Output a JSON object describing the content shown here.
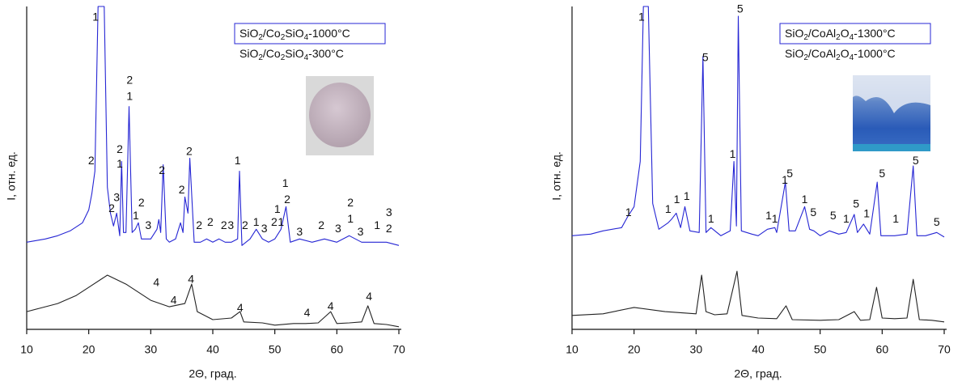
{
  "chart_data": [
    {
      "type": "line",
      "xlabel": "2Θ, град.",
      "ylabel": "I, отн. ед.",
      "xlim": [
        10,
        70
      ],
      "ylim": [
        0,
        100
      ],
      "xticks": [
        10,
        20,
        30,
        40,
        50,
        60,
        70
      ],
      "legend": "upper right",
      "series": [
        {
          "name": "SiO2/Co2SiO4-1000°C",
          "color": "#2626d4",
          "x": [
            10,
            13,
            15,
            17,
            19,
            20,
            20.5,
            21,
            21.5,
            22.5,
            23,
            23.5,
            24,
            24.5,
            25,
            25.3,
            25.6,
            26,
            26.5,
            27,
            27.5,
            28,
            28.5,
            29,
            30,
            31,
            31.3,
            31.6,
            32,
            32.5,
            33,
            34,
            34.8,
            35.2,
            35.5,
            36,
            36.3,
            37,
            38,
            39,
            40,
            41,
            42,
            43,
            44,
            44.3,
            44.7,
            46,
            47,
            48,
            49,
            50,
            51,
            51.8,
            52.5,
            54,
            56,
            58,
            60,
            62,
            64,
            66,
            68,
            70
          ],
          "values": [
            27,
            28,
            29,
            30.5,
            33,
            37,
            42,
            49,
            100,
            100,
            44,
            36,
            32,
            36,
            29,
            52,
            30,
            30,
            69,
            30,
            31,
            33,
            28,
            28,
            28,
            31,
            34,
            30,
            51,
            28,
            27,
            28,
            33,
            30,
            41,
            36,
            53,
            27,
            27,
            28,
            27,
            28,
            27,
            27,
            28,
            49,
            26,
            28,
            31,
            28,
            27,
            28,
            31,
            38,
            27,
            28,
            27,
            28,
            27,
            29,
            27,
            27,
            27,
            26
          ]
        },
        {
          "name": "SiO2/Co2SiO4-300°C",
          "color": "#222222",
          "x": [
            10,
            12,
            15,
            18,
            20,
            23,
            26,
            28,
            30,
            33,
            35.5,
            36.6,
            37.5,
            40,
            43,
            44.4,
            45,
            48,
            50,
            53,
            55,
            57,
            59,
            60,
            62,
            64,
            65,
            66,
            68,
            70
          ],
          "values": [
            5.5,
            6.5,
            8,
            10.5,
            13,
            16.8,
            14,
            11.5,
            9,
            7,
            8,
            14,
            5.5,
            3,
            3.5,
            5.5,
            2.3,
            2,
            1.3,
            1.8,
            1.8,
            2,
            5.5,
            1.8,
            2,
            2.3,
            7.3,
            1.8,
            1.5,
            0.8
          ]
        }
      ],
      "annotations": [
        {
          "text": "1",
          "x": 21.1,
          "y": 96.5
        },
        {
          "text": "2",
          "x": 20.4,
          "y": 52
        },
        {
          "text": "3",
          "x": 24.5,
          "y": 40.6
        },
        {
          "text": "2",
          "x": 23.7,
          "y": 37.3
        },
        {
          "text": "2",
          "x": 25,
          "y": 55.6
        },
        {
          "text": "1",
          "x": 25,
          "y": 51
        },
        {
          "text": "2",
          "x": 26.6,
          "y": 77
        },
        {
          "text": "1",
          "x": 26.6,
          "y": 72
        },
        {
          "text": "2",
          "x": 28.5,
          "y": 39
        },
        {
          "text": "1",
          "x": 27.6,
          "y": 35
        },
        {
          "text": "3",
          "x": 29.6,
          "y": 32
        },
        {
          "text": "2",
          "x": 31.8,
          "y": 49
        },
        {
          "text": "2",
          "x": 35,
          "y": 43
        },
        {
          "text": "2",
          "x": 36.2,
          "y": 55
        },
        {
          "text": "2",
          "x": 37.8,
          "y": 32
        },
        {
          "text": "2",
          "x": 39.6,
          "y": 33
        },
        {
          "text": "2",
          "x": 41.8,
          "y": 32
        },
        {
          "text": "3",
          "x": 42.9,
          "y": 32
        },
        {
          "text": "1",
          "x": 44,
          "y": 52
        },
        {
          "text": "2",
          "x": 45.2,
          "y": 32
        },
        {
          "text": "1",
          "x": 47,
          "y": 33
        },
        {
          "text": "3",
          "x": 48.3,
          "y": 31
        },
        {
          "text": "2",
          "x": 49.9,
          "y": 33
        },
        {
          "text": "1",
          "x": 50.4,
          "y": 37
        },
        {
          "text": "1",
          "x": 51,
          "y": 33
        },
        {
          "text": "1",
          "x": 51.7,
          "y": 45
        },
        {
          "text": "2",
          "x": 52,
          "y": 40
        },
        {
          "text": "3",
          "x": 54,
          "y": 30
        },
        {
          "text": "2",
          "x": 57.5,
          "y": 32
        },
        {
          "text": "3",
          "x": 60.2,
          "y": 31
        },
        {
          "text": "2",
          "x": 62.2,
          "y": 39
        },
        {
          "text": "1",
          "x": 62.2,
          "y": 34
        },
        {
          "text": "3",
          "x": 63.8,
          "y": 30
        },
        {
          "text": "1",
          "x": 66.5,
          "y": 32
        },
        {
          "text": "3",
          "x": 68.4,
          "y": 36
        },
        {
          "text": "2",
          "x": 68.4,
          "y": 31
        },
        {
          "text": "4",
          "x": 30.9,
          "y": 14.3
        },
        {
          "text": "4",
          "x": 33.7,
          "y": 8.8
        },
        {
          "text": "4",
          "x": 36.5,
          "y": 15.3
        },
        {
          "text": "4",
          "x": 44.4,
          "y": 6.5
        },
        {
          "text": "4",
          "x": 55.2,
          "y": 5
        },
        {
          "text": "4",
          "x": 59,
          "y": 7
        },
        {
          "text": "4",
          "x": 65.2,
          "y": 10
        }
      ]
    },
    {
      "type": "line",
      "xlabel": "2Θ, град.",
      "ylabel": "I, отн. ед.",
      "xlim": [
        10,
        70
      ],
      "ylim": [
        0,
        100
      ],
      "xticks": [
        10,
        20,
        30,
        40,
        50,
        60,
        70
      ],
      "legend": "upper right",
      "series": [
        {
          "name": "SiO2/CoAl2O4-1300°C",
          "color": "#2626d4",
          "x": [
            10,
            13,
            15,
            18,
            19,
            20,
            21,
            21.5,
            22.3,
            23,
            24,
            25.5,
            26,
            26.8,
            27.5,
            28.2,
            29,
            30.5,
            31.1,
            31.6,
            32.4,
            34,
            35.5,
            36.1,
            36.5,
            36.8,
            37.3,
            39,
            40,
            41.5,
            42.7,
            43,
            44.4,
            45,
            46,
            47.5,
            48.3,
            49,
            50,
            51.5,
            53,
            54.2,
            55.5,
            56,
            57,
            58,
            59.2,
            59.8,
            62,
            64,
            65,
            65.6,
            67,
            68.8,
            70
          ],
          "values": [
            29,
            29.5,
            30.5,
            31.5,
            35,
            38,
            52,
            100,
            100,
            39,
            31,
            33,
            34,
            36,
            31.5,
            38,
            30.5,
            30,
            84.5,
            30,
            31.5,
            29,
            30.5,
            52,
            32,
            97,
            30.5,
            29.5,
            29,
            31,
            31.5,
            30,
            45.6,
            30.5,
            30.5,
            38,
            31,
            30.5,
            29,
            30.5,
            29.5,
            30,
            35.6,
            30,
            32.6,
            29.5,
            45.6,
            29,
            29,
            29.5,
            50.6,
            29,
            29,
            30,
            28.6
          ]
        },
        {
          "name": "SiO2/CoAl2O4-1000°C",
          "color": "#222222",
          "x": [
            10,
            15,
            20,
            25,
            30,
            30.9,
            31.6,
            33,
            35,
            36.6,
            37.4,
            40,
            43,
            44.5,
            45.5,
            50,
            53,
            55.5,
            56.5,
            58,
            59.1,
            60,
            62,
            64,
            65,
            66,
            68,
            70
          ],
          "values": [
            4.3,
            4.8,
            6.8,
            5.5,
            4.8,
            16.8,
            5.5,
            4.5,
            4.8,
            18,
            4.3,
            3.5,
            3.3,
            7.3,
            3,
            2.8,
            3,
            5.5,
            2.8,
            3,
            13,
            3.5,
            3.3,
            3.5,
            15.5,
            3,
            2.8,
            2.3
          ]
        }
      ],
      "annotations": [
        {
          "text": "1",
          "x": 21.2,
          "y": 96.5
        },
        {
          "text": "1",
          "x": 19.1,
          "y": 36
        },
        {
          "text": "1",
          "x": 25.5,
          "y": 37
        },
        {
          "text": "1",
          "x": 26.9,
          "y": 40
        },
        {
          "text": "1",
          "x": 28.5,
          "y": 41
        },
        {
          "text": "5",
          "x": 31.5,
          "y": 84
        },
        {
          "text": "1",
          "x": 32.4,
          "y": 34
        },
        {
          "text": "1",
          "x": 35.9,
          "y": 54
        },
        {
          "text": "5",
          "x": 37.1,
          "y": 99
        },
        {
          "text": "1",
          "x": 41.7,
          "y": 35
        },
        {
          "text": "1",
          "x": 42.7,
          "y": 34
        },
        {
          "text": "1",
          "x": 44.3,
          "y": 46
        },
        {
          "text": "5",
          "x": 45.1,
          "y": 48
        },
        {
          "text": "1",
          "x": 47.5,
          "y": 40
        },
        {
          "text": "5",
          "x": 48.9,
          "y": 36
        },
        {
          "text": "5",
          "x": 52.1,
          "y": 35
        },
        {
          "text": "1",
          "x": 54.2,
          "y": 34
        },
        {
          "text": "5",
          "x": 55.8,
          "y": 38.6
        },
        {
          "text": "1",
          "x": 57.5,
          "y": 35.6
        },
        {
          "text": "5",
          "x": 60,
          "y": 48
        },
        {
          "text": "1",
          "x": 62.2,
          "y": 34
        },
        {
          "text": "5",
          "x": 65.4,
          "y": 52
        },
        {
          "text": "5",
          "x": 68.8,
          "y": 33
        }
      ]
    }
  ]
}
